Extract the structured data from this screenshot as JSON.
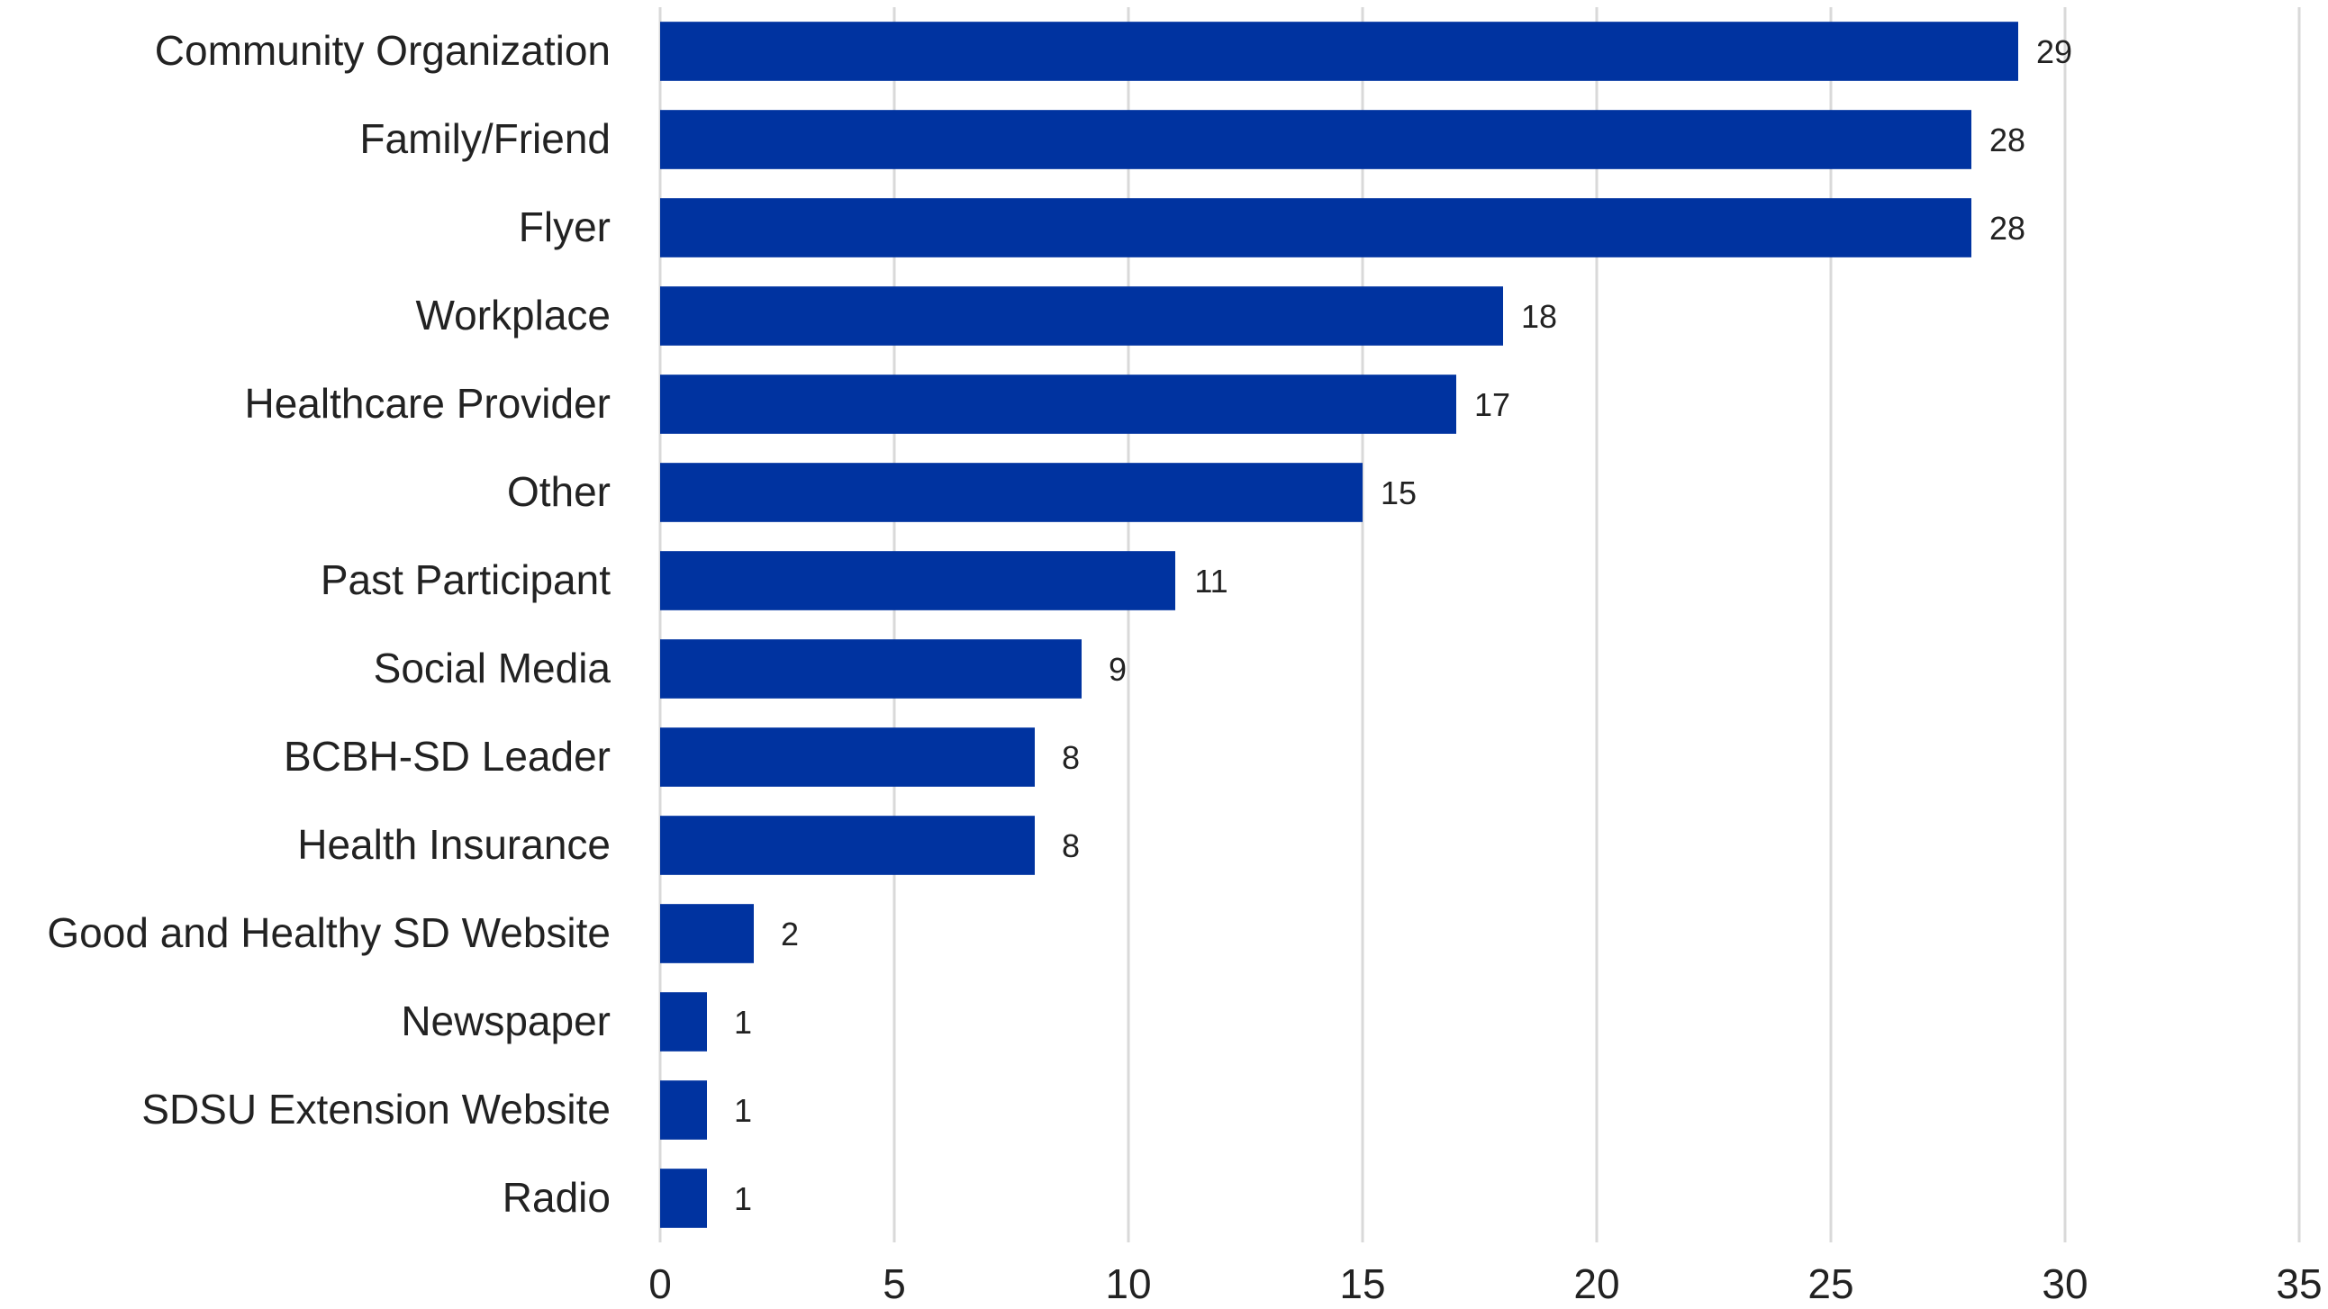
{
  "chart_data": {
    "type": "bar",
    "orientation": "horizontal",
    "categories": [
      "Community Organization",
      "Family/Friend",
      "Flyer",
      "Workplace",
      "Healthcare Provider",
      "Other",
      "Past Participant",
      "Social Media",
      "BCBH-SD Leader",
      "Health Insurance",
      "Good and Healthy SD Website",
      "Newspaper",
      "SDSU Extension Website",
      "Radio"
    ],
    "values": [
      29,
      28,
      28,
      18,
      17,
      15,
      11,
      9,
      8,
      8,
      2,
      1,
      1,
      1
    ],
    "xlim": [
      0,
      35
    ],
    "xticks": [
      0,
      5,
      10,
      15,
      20,
      25,
      30,
      35
    ],
    "title": "",
    "xlabel": "",
    "ylabel": "",
    "grid": "vertical",
    "legend": "none",
    "bar_color": "#0033a0"
  }
}
